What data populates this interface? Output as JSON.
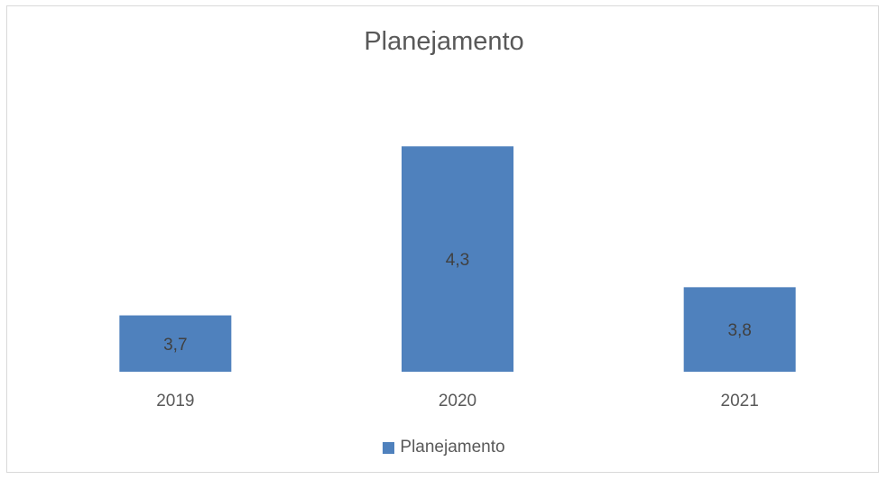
{
  "chart_data": {
    "type": "bar",
    "title": "Planejamento",
    "categories": [
      "2019",
      "2020",
      "2021"
    ],
    "series": [
      {
        "name": "Planejamento",
        "values": [
          3.7,
          4.3,
          3.8
        ],
        "value_labels": [
          "3,7",
          "4,3",
          "3,8"
        ],
        "color": "#4f81bd"
      }
    ],
    "ylim": [
      3.5,
      4.4
    ],
    "grid": false,
    "legend_position": "bottom"
  }
}
